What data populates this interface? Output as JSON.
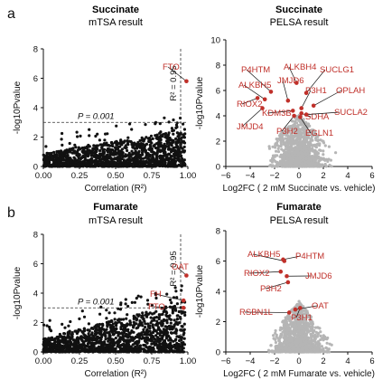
{
  "panels": {
    "a": "a",
    "b": "b"
  },
  "chart_data": [
    {
      "id": "a-mtsa",
      "type": "scatter",
      "title": "Succinate",
      "subtitle": "mTSA result",
      "xlabel": "Correlation (R²)",
      "ylabel": "-log10Pvalue",
      "xlim": [
        0,
        1.0
      ],
      "ylim": [
        0,
        8
      ],
      "xticks": [
        "0.00",
        "0.25",
        "0.50",
        "0.75",
        "1.00"
      ],
      "yticks": [
        "0",
        "2",
        "4",
        "6",
        "8"
      ],
      "threshold_label": "P = 0.001",
      "threshold_y": 3,
      "r2_label": "R² = 0.95",
      "r2_x": 0.95,
      "highlighted": [
        {
          "label": "FTO",
          "x": 0.99,
          "y": 5.8
        }
      ],
      "background_series": {
        "name": "",
        "color": "#111111"
      }
    },
    {
      "id": "a-pelsa",
      "type": "scatter",
      "title": "Succinate",
      "subtitle": "PELSA result",
      "xlabel": "Log2FC ( 2 mM Succinate vs. vehicle)",
      "ylabel": "-log10Pvalue",
      "xlim": [
        -6,
        6
      ],
      "ylim": [
        0,
        10
      ],
      "xticks": [
        "−6",
        "−4",
        "−2",
        "0",
        "2",
        "4",
        "6"
      ],
      "yticks": [
        "0",
        "2",
        "4",
        "6",
        "8",
        "10"
      ],
      "highlighted": [
        {
          "label": "ALKBH4",
          "x": -0.2,
          "y": 6.6
        },
        {
          "label": "SUCLG1",
          "x": 0.6,
          "y": 5.8
        },
        {
          "label": "P4HTM",
          "x": -2.3,
          "y": 5.9
        },
        {
          "label": "JMJD6",
          "x": -0.9,
          "y": 5.2
        },
        {
          "label": "ALKBH5",
          "x": -2.8,
          "y": 5.3
        },
        {
          "label": "P3H1",
          "x": 0.2,
          "y": 4.6
        },
        {
          "label": "OPLAH",
          "x": 1.2,
          "y": 4.8
        },
        {
          "label": "RIOX2",
          "x": -3.4,
          "y": 5.4
        },
        {
          "label": "KDM3B",
          "x": -0.5,
          "y": 4.4
        },
        {
          "label": "SDHA",
          "x": 0.2,
          "y": 4.2
        },
        {
          "label": "SUCLA2",
          "x": 0.6,
          "y": 4.1
        },
        {
          "label": "JMJD4",
          "x": -3.0,
          "y": 4.6
        },
        {
          "label": "P3H2",
          "x": -0.4,
          "y": 4.0
        },
        {
          "label": "EGLN1",
          "x": 0.1,
          "y": 3.9
        }
      ],
      "background_series": {
        "name": "",
        "color": "#b5b5b5"
      }
    },
    {
      "id": "b-mtsa",
      "type": "scatter",
      "title": "Fumarate",
      "subtitle": "mTSA result",
      "xlabel": "Correlation (R²)",
      "ylabel": "-log10Pvalue",
      "xlim": [
        0,
        1.0
      ],
      "ylim": [
        0,
        8
      ],
      "xticks": [
        "0.00",
        "0.25",
        "0.50",
        "0.75",
        "1.00"
      ],
      "yticks": [
        "0",
        "2",
        "4",
        "6",
        "8"
      ],
      "threshold_label": "P = 0.001",
      "threshold_y": 3,
      "r2_label": "R² = 0.95",
      "r2_x": 0.95,
      "highlighted": [
        {
          "label": "OAT",
          "x": 0.99,
          "y": 5.2
        },
        {
          "label": "FH",
          "x": 0.97,
          "y": 3.5
        },
        {
          "label": "FTO",
          "x": 0.97,
          "y": 3.0
        }
      ],
      "background_series": {
        "name": "",
        "color": "#111111"
      }
    },
    {
      "id": "b-pelsa",
      "type": "scatter",
      "title": "Fumarate",
      "subtitle": "PELSA result",
      "xlabel": "Log2FC ( 2 mM Fumarate vs. vehicle)",
      "ylabel": "-log10Pvalue",
      "xlim": [
        -6,
        6
      ],
      "ylim": [
        0,
        8
      ],
      "xticks": [
        "−6",
        "−4",
        "−2",
        "0",
        "2",
        "4",
        "6"
      ],
      "yticks": [
        "0",
        "2",
        "4",
        "6",
        "8"
      ],
      "highlighted": [
        {
          "label": "ALKBH5",
          "x": -1.2,
          "y": 6.0
        },
        {
          "label": "P4HTM",
          "x": -1.3,
          "y": 6.1
        },
        {
          "label": "RIOX2",
          "x": -1.5,
          "y": 5.3
        },
        {
          "label": "JMJD6",
          "x": -1.0,
          "y": 5.0
        },
        {
          "label": "P3H2",
          "x": -0.9,
          "y": 4.6
        },
        {
          "label": "OAT",
          "x": -0.3,
          "y": 2.8
        },
        {
          "label": "RSBN1L",
          "x": -0.8,
          "y": 2.6
        },
        {
          "label": "P3H1",
          "x": 0.1,
          "y": 2.9
        }
      ],
      "background_series": {
        "name": "",
        "color": "#b5b5b5"
      }
    }
  ]
}
